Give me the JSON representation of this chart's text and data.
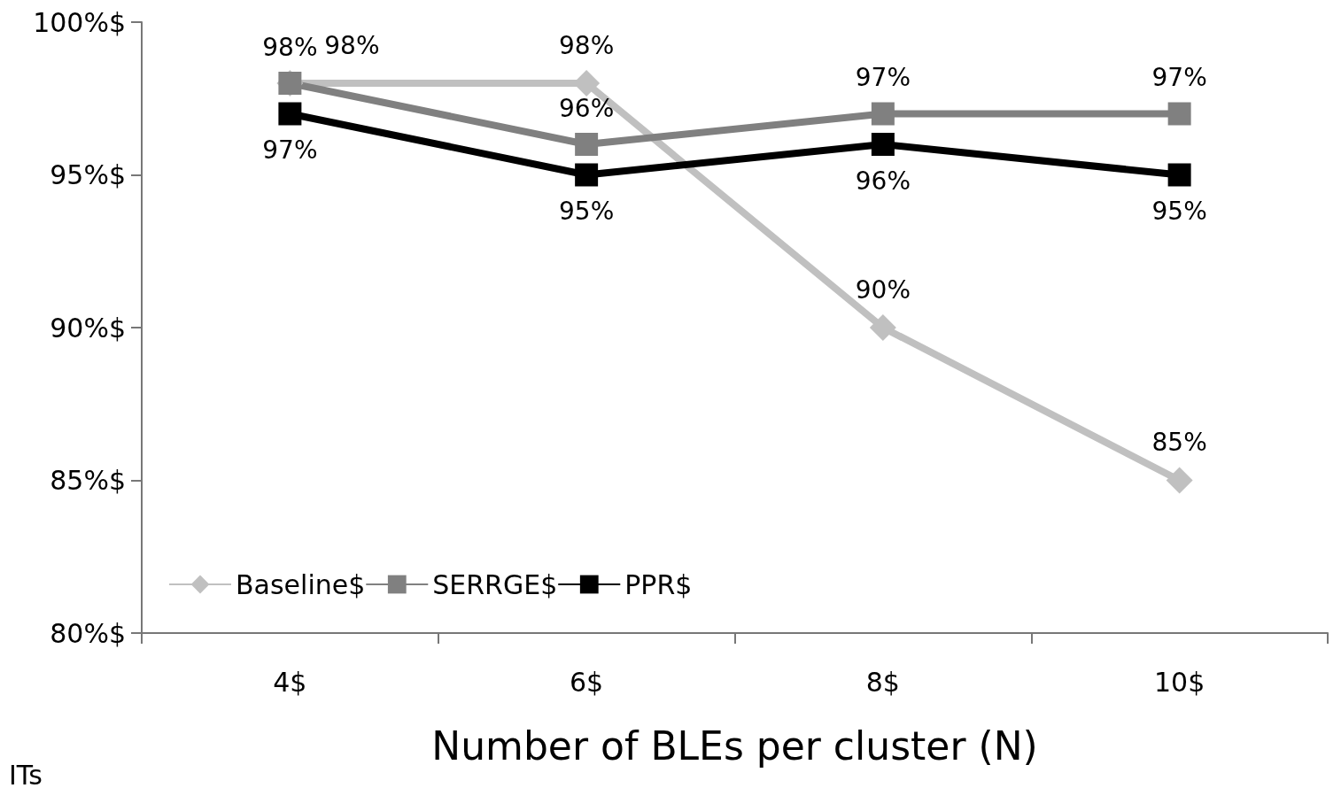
{
  "chart_data": {
    "type": "line",
    "xlabel": "Number of BLEs per cluster (N)",
    "categories": [
      "4$",
      "6$",
      "8$",
      "10$"
    ],
    "series": [
      {
        "name": "Baseline$",
        "color": "#c0c0c0",
        "marker": "diamond",
        "values": [
          98,
          98,
          90,
          85
        ],
        "value_labels": [
          "98%",
          "98%",
          "90%",
          "85%"
        ]
      },
      {
        "name": "SERRGE$",
        "color": "#808080",
        "marker": "square",
        "values": [
          98,
          96,
          97,
          97
        ],
        "value_labels": [
          "98%",
          "96%",
          "97%",
          "97%"
        ]
      },
      {
        "name": "PPR$",
        "color": "#000000",
        "marker": "square",
        "values": [
          97,
          95,
          96,
          95
        ],
        "value_labels": [
          "97%",
          "95%",
          "96%",
          "95%"
        ]
      }
    ],
    "ylim": [
      80,
      100
    ],
    "yticks": [
      {
        "value": 80,
        "label": "80%$"
      },
      {
        "value": 85,
        "label": "85%$"
      },
      {
        "value": 90,
        "label": "90%$"
      },
      {
        "value": 95,
        "label": "95%$"
      },
      {
        "value": 100,
        "label": "100%$"
      }
    ],
    "grid": false,
    "legend": "bottom left",
    "line_style": "solid",
    "annotations": [
      "ITs"
    ]
  }
}
